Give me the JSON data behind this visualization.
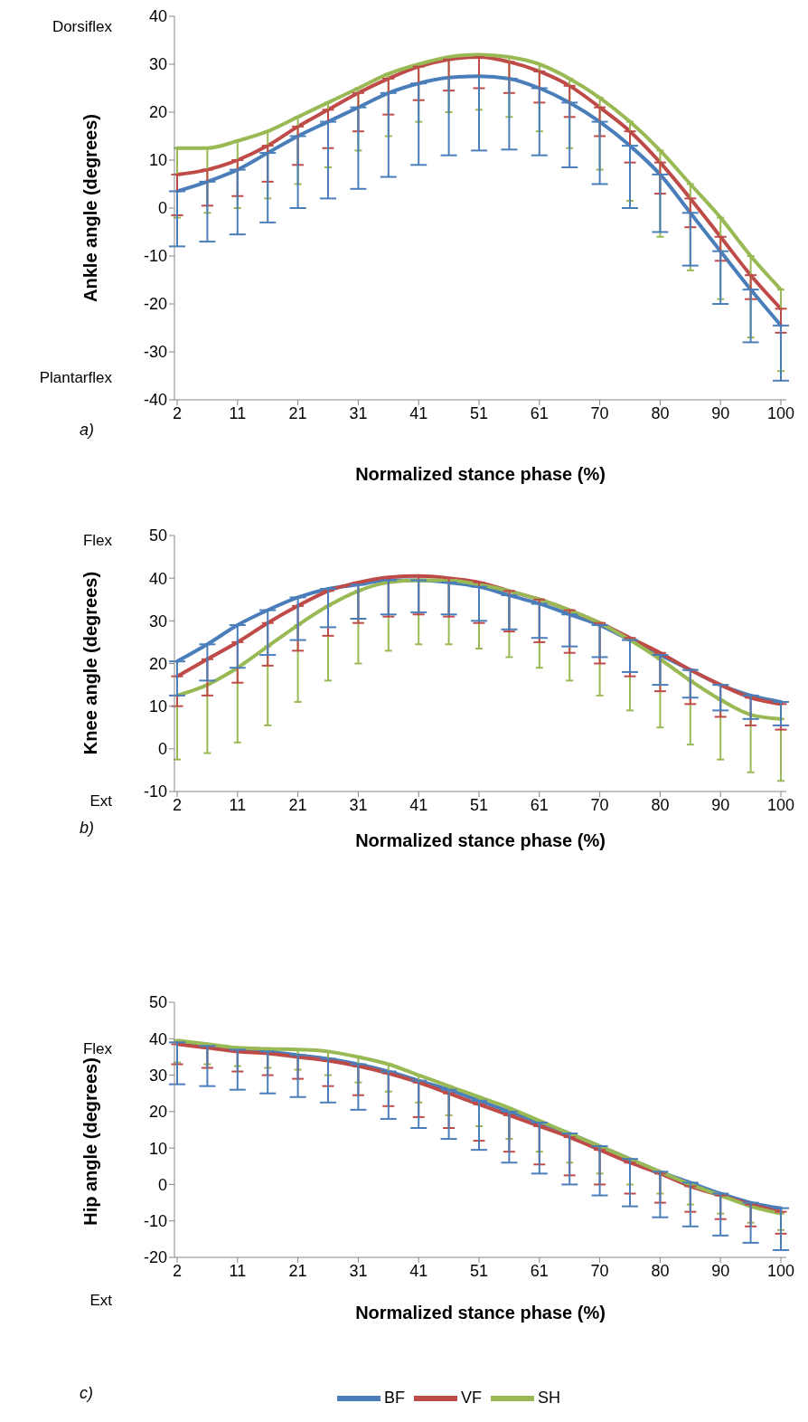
{
  "chart_data": [
    {
      "type": "line",
      "ylabel": "Ankle angle (degrees)",
      "xlabel": "Normalized stance phase (%)",
      "annotations": [
        "Dorsiflex",
        "Plantarflex",
        "a)"
      ],
      "categories": [
        "2",
        null,
        "11",
        null,
        "21",
        null,
        "31",
        null,
        "41",
        null,
        "51",
        null,
        "61",
        null,
        "70",
        null,
        "80",
        null,
        "90",
        null,
        "100"
      ],
      "ylim": [
        -40,
        40
      ],
      "yticks": [
        -40,
        -30,
        -20,
        -10,
        0,
        10,
        20,
        30,
        40
      ],
      "legend": false,
      "series": [
        {
          "color": "#4a7ebb",
          "values": [
            3.5,
            5.5,
            8,
            11.5,
            15,
            18,
            21,
            24,
            26,
            27.2,
            27.5,
            27,
            25,
            22,
            18,
            13,
            7,
            -1,
            -9,
            -17,
            -24.5
          ],
          "errors": [
            [
              -8,
              3.5
            ],
            [
              -7,
              5.5
            ],
            [
              -5.5,
              8
            ],
            [
              -3,
              11.5
            ],
            [
              0,
              15
            ],
            [
              2,
              18
            ],
            [
              4,
              21
            ],
            [
              6.5,
              24
            ],
            [
              9,
              26
            ],
            [
              11,
              27.2
            ],
            [
              12,
              27.5
            ],
            [
              12.2,
              27
            ],
            [
              11,
              25
            ],
            [
              8.5,
              22
            ],
            [
              5,
              18
            ],
            [
              0,
              13
            ],
            [
              -5,
              7
            ],
            [
              -12,
              -1
            ],
            [
              -20,
              -9
            ],
            [
              -28,
              -17
            ],
            [
              -36,
              -24.5
            ]
          ]
        },
        {
          "color": "#be4b48",
          "values": [
            7,
            8,
            10,
            13,
            17,
            20.5,
            24,
            27,
            29.5,
            31,
            31.5,
            30.5,
            28.5,
            25.5,
            21,
            16,
            9.5,
            2,
            -6,
            -14,
            -21
          ],
          "errors": [
            [
              -1.5,
              7
            ],
            [
              0.5,
              8
            ],
            [
              2.5,
              10
            ],
            [
              5.5,
              13
            ],
            [
              9,
              17
            ],
            [
              12.5,
              20.5
            ],
            [
              16,
              24
            ],
            [
              19.5,
              27
            ],
            [
              22.5,
              29.5
            ],
            [
              24.5,
              31
            ],
            [
              25,
              31.5
            ],
            [
              24,
              30.5
            ],
            [
              22,
              28.5
            ],
            [
              19,
              25.5
            ],
            [
              15,
              21
            ],
            [
              9.5,
              16
            ],
            [
              3,
              9.5
            ],
            [
              -4,
              2
            ],
            [
              -11,
              -6
            ],
            [
              -19,
              -14
            ],
            [
              -26,
              -21
            ]
          ]
        },
        {
          "color": "#98b954",
          "values": [
            12.5,
            12.5,
            14,
            16,
            19,
            22,
            25,
            28,
            30,
            31.5,
            32,
            31.5,
            30,
            27,
            23,
            18,
            12,
            5,
            -2,
            -10,
            -17
          ],
          "errors": [
            [
              -2,
              12.5
            ],
            [
              -1,
              12.5
            ],
            [
              0,
              14
            ],
            [
              2,
              16
            ],
            [
              5,
              19
            ],
            [
              8.5,
              22
            ],
            [
              12,
              25
            ],
            [
              15,
              28
            ],
            [
              18,
              30
            ],
            [
              20,
              31.5
            ],
            [
              20.5,
              32
            ],
            [
              19,
              31.5
            ],
            [
              16,
              30
            ],
            [
              12.5,
              27
            ],
            [
              8,
              23
            ],
            [
              1.5,
              18
            ],
            [
              -6,
              12
            ],
            [
              -13,
              5
            ],
            [
              -19,
              -2
            ],
            [
              -27,
              -10
            ],
            [
              -34,
              -17
            ]
          ]
        }
      ]
    },
    {
      "type": "line",
      "ylabel": "Knee angle (degrees)",
      "xlabel": "Normalized stance phase (%)",
      "annotations": [
        "Flex",
        "Ext",
        "b)"
      ],
      "categories": [
        "2",
        null,
        "11",
        null,
        "21",
        null,
        "31",
        null,
        "41",
        null,
        "51",
        null,
        "61",
        null,
        "70",
        null,
        "80",
        null,
        "90",
        null,
        "100"
      ],
      "ylim": [
        -10,
        50
      ],
      "yticks": [
        -10,
        0,
        10,
        20,
        30,
        40,
        50
      ],
      "legend": false,
      "series": [
        {
          "color": "#4a7ebb",
          "values": [
            20.5,
            24.5,
            29,
            32.5,
            35.5,
            37.5,
            38.5,
            39.5,
            39.5,
            39,
            38,
            36,
            34,
            31.5,
            29,
            25.5,
            22,
            18.5,
            15,
            12.5,
            11
          ],
          "errors": [
            [
              12.5,
              20.5
            ],
            [
              16,
              24.5
            ],
            [
              19,
              29
            ],
            [
              22,
              32.5
            ],
            [
              25.5,
              35.5
            ],
            [
              28.5,
              37.5
            ],
            [
              30.5,
              38.5
            ],
            [
              31.5,
              39.5
            ],
            [
              32,
              39.5
            ],
            [
              31.5,
              39
            ],
            [
              30,
              38
            ],
            [
              28,
              36
            ],
            [
              26,
              34
            ],
            [
              24,
              31.5
            ],
            [
              21.5,
              29
            ],
            [
              18,
              25.5
            ],
            [
              15,
              22
            ],
            [
              12,
              18.5
            ],
            [
              9,
              15
            ],
            [
              7,
              12.5
            ],
            [
              5.5,
              11
            ]
          ]
        },
        {
          "color": "#be4b48",
          "values": [
            17,
            21,
            25,
            29.5,
            33.5,
            37,
            39,
            40.2,
            40.5,
            40,
            39,
            37,
            35,
            32.5,
            29.5,
            26,
            22.5,
            18.5,
            15,
            12,
            10.5
          ],
          "errors": [
            [
              10,
              17
            ],
            [
              12.5,
              21
            ],
            [
              15.5,
              25
            ],
            [
              19.5,
              29.5
            ],
            [
              23,
              33.5
            ],
            [
              26.5,
              37
            ],
            [
              29.5,
              39
            ],
            [
              31,
              40.2
            ],
            [
              31.5,
              40.5
            ],
            [
              31,
              40
            ],
            [
              29.5,
              39
            ],
            [
              27.5,
              37
            ],
            [
              25,
              35
            ],
            [
              22.5,
              32.5
            ],
            [
              20,
              29.5
            ],
            [
              17,
              26
            ],
            [
              13.5,
              22.5
            ],
            [
              10.5,
              18.5
            ],
            [
              7.5,
              15
            ],
            [
              5.5,
              12
            ],
            [
              4.5,
              10.5
            ]
          ]
        },
        {
          "color": "#98b954",
          "values": [
            12.5,
            15,
            19,
            24,
            29,
            33.5,
            37,
            39,
            39.5,
            39.5,
            38.5,
            37,
            35,
            32.5,
            29.5,
            25.5,
            21,
            16,
            11.5,
            8,
            7
          ],
          "errors": [
            [
              -2.5,
              12.5
            ],
            [
              -1,
              15
            ],
            [
              1.5,
              19
            ],
            [
              5.5,
              24
            ],
            [
              11,
              29
            ],
            [
              16,
              33.5
            ],
            [
              20,
              37
            ],
            [
              23,
              39
            ],
            [
              24.5,
              39.5
            ],
            [
              24.5,
              39.5
            ],
            [
              23.5,
              38.5
            ],
            [
              21.5,
              37
            ],
            [
              19,
              35
            ],
            [
              16,
              32.5
            ],
            [
              12.5,
              29.5
            ],
            [
              9,
              25.5
            ],
            [
              5,
              21
            ],
            [
              1,
              16
            ],
            [
              -2.5,
              11.5
            ],
            [
              -5.5,
              8
            ],
            [
              -7.5,
              7
            ]
          ]
        }
      ]
    },
    {
      "type": "line",
      "ylabel": "Hip angle (degrees)",
      "xlabel": "Normalized stance phase (%)",
      "annotations": [
        "Flex",
        "Ext",
        "c)"
      ],
      "categories": [
        "2",
        null,
        "11",
        null,
        "21",
        null,
        "31",
        null,
        "41",
        null,
        "51",
        null,
        "61",
        null,
        "70",
        null,
        "80",
        null,
        "90",
        null,
        "100"
      ],
      "ylim": [
        -20,
        50
      ],
      "yticks": [
        -20,
        -10,
        0,
        10,
        20,
        30,
        40,
        50
      ],
      "legend": "bottom",
      "series": [
        {
          "name": "BF",
          "color": "#4a7ebb",
          "values": [
            39,
            38,
            37,
            36.5,
            35.5,
            34.5,
            33,
            31,
            28.5,
            26,
            23,
            20,
            17,
            14,
            10.5,
            7,
            3.5,
            0.5,
            -2.5,
            -5,
            -6.5
          ],
          "errors": [
            [
              27.5,
              39
            ],
            [
              27,
              38
            ],
            [
              26,
              37
            ],
            [
              25,
              36.5
            ],
            [
              24,
              35.5
            ],
            [
              22.5,
              34.5
            ],
            [
              20.5,
              33
            ],
            [
              18,
              31
            ],
            [
              15.5,
              28.5
            ],
            [
              12.5,
              26
            ],
            [
              9.5,
              23
            ],
            [
              6,
              20
            ],
            [
              3,
              17
            ],
            [
              0,
              14
            ],
            [
              -3,
              10.5
            ],
            [
              -6,
              7
            ],
            [
              -9,
              3.5
            ],
            [
              -11.5,
              0.5
            ],
            [
              -14,
              -2.5
            ],
            [
              -16,
              -5
            ],
            [
              -18,
              -6.5
            ]
          ]
        },
        {
          "name": "VF",
          "color": "#be4b48",
          "values": [
            38.5,
            37.5,
            36.5,
            36,
            35,
            34,
            32.5,
            30.5,
            28,
            25,
            22,
            19,
            16,
            13,
            9.5,
            6,
            3,
            -0.5,
            -3,
            -5.5,
            -7.5
          ],
          "errors": [
            [
              33,
              38.5
            ],
            [
              32,
              37.5
            ],
            [
              31,
              36.5
            ],
            [
              30,
              36
            ],
            [
              29,
              35
            ],
            [
              27,
              34
            ],
            [
              24.5,
              32.5
            ],
            [
              21.5,
              30.5
            ],
            [
              18.5,
              28
            ],
            [
              15.5,
              25
            ],
            [
              12,
              22
            ],
            [
              9,
              19
            ],
            [
              5.5,
              16
            ],
            [
              2.5,
              13
            ],
            [
              0,
              9.5
            ],
            [
              -2.5,
              6
            ],
            [
              -5,
              3
            ],
            [
              -7.5,
              -0.5
            ],
            [
              -9.5,
              -3
            ],
            [
              -11.5,
              -5.5
            ],
            [
              -13.5,
              -7.5
            ]
          ]
        },
        {
          "name": "SH",
          "color": "#98b954",
          "values": [
            39.5,
            38.5,
            37.5,
            37.2,
            37,
            36.5,
            35,
            33,
            30,
            27,
            24,
            21,
            17.5,
            14,
            10.5,
            7,
            3.5,
            0,
            -3,
            -6,
            -8
          ],
          "errors": [
            [
              33.5,
              39.5
            ],
            [
              33,
              38.5
            ],
            [
              32.5,
              37.5
            ],
            [
              32,
              37.2
            ],
            [
              31.5,
              37
            ],
            [
              30,
              36.5
            ],
            [
              28,
              35
            ],
            [
              25.5,
              33
            ],
            [
              22.5,
              30
            ],
            [
              19,
              27
            ],
            [
              16,
              24
            ],
            [
              12.5,
              21
            ],
            [
              9,
              17.5
            ],
            [
              6,
              14
            ],
            [
              3,
              10.5
            ],
            [
              0,
              7
            ],
            [
              -2.5,
              3.5
            ],
            [
              -5.5,
              0
            ],
            [
              -8,
              -3
            ],
            [
              -10.5,
              -6
            ],
            [
              -12.5,
              -8
            ]
          ]
        }
      ]
    }
  ]
}
